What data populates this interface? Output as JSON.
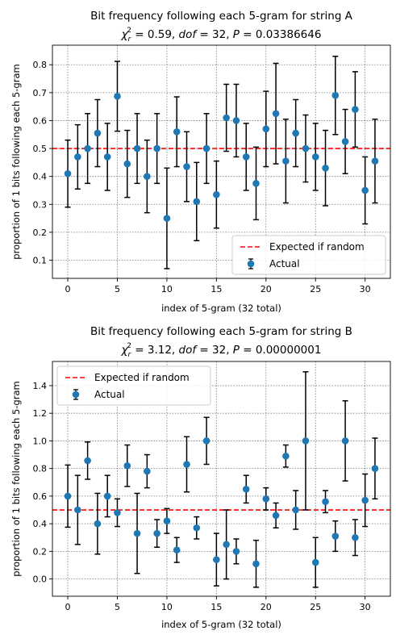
{
  "chart_data": [
    {
      "type": "scatter",
      "title_line1": "Bit frequency following each 5-gram for string A",
      "title_line2": {
        "chi": "χ",
        "sub": "r",
        "sup": "2",
        "rest1": " = 0.59, ",
        "dof": "dof",
        "rest2": " = 32, ",
        "p": "P",
        "rest3": " = 0.03386646"
      },
      "xlabel": "index of 5-gram (32 total)",
      "ylabel": "proportion of 1 bits following each 5-gram",
      "xlim": [
        -1.55,
        32.55
      ],
      "ylim": [
        0.035,
        0.87
      ],
      "xticks": [
        0,
        5,
        10,
        15,
        20,
        25,
        30
      ],
      "yticks": [
        0.1,
        0.2,
        0.3,
        0.4,
        0.5,
        0.6,
        0.7,
        0.8
      ],
      "ytick_labels": [
        "0.1",
        "0.2",
        "0.3",
        "0.4",
        "0.5",
        "0.6",
        "0.7",
        "0.8"
      ],
      "grid": true,
      "legend_position": "lower-right",
      "expected_line": {
        "label": "Expected if random",
        "y": 0.5,
        "color": "#ff0000"
      },
      "series": [
        {
          "name": "Actual",
          "color": "#1f77b4",
          "x": [
            0,
            1,
            2,
            3,
            4,
            5,
            6,
            7,
            8,
            9,
            10,
            11,
            12,
            13,
            14,
            15,
            16,
            17,
            18,
            19,
            20,
            21,
            22,
            23,
            24,
            25,
            26,
            27,
            28,
            29,
            30,
            31
          ],
          "y": [
            0.41,
            0.47,
            0.5,
            0.555,
            0.47,
            0.687,
            0.445,
            0.5,
            0.4,
            0.5,
            0.25,
            0.56,
            0.435,
            0.31,
            0.5,
            0.335,
            0.61,
            0.6,
            0.47,
            0.375,
            0.57,
            0.625,
            0.455,
            0.555,
            0.5,
            0.47,
            0.43,
            0.69,
            0.525,
            0.64,
            0.35,
            0.455
          ],
          "err": [
            0.12,
            0.115,
            0.125,
            0.12,
            0.12,
            0.125,
            0.12,
            0.125,
            0.13,
            0.125,
            0.18,
            0.125,
            0.125,
            0.14,
            0.125,
            0.12,
            0.12,
            0.13,
            0.12,
            0.13,
            0.135,
            0.18,
            0.15,
            0.12,
            0.12,
            0.12,
            0.135,
            0.14,
            0.115,
            0.135,
            0.12,
            0.15
          ]
        }
      ]
    },
    {
      "type": "scatter",
      "title_line1": "Bit frequency following each 5-gram for string B",
      "title_line2": {
        "chi": "χ",
        "sub": "r",
        "sup": "2",
        "rest1": " = 3.12, ",
        "dof": "dof",
        "rest2": " = 32, ",
        "p": "P",
        "rest3": " = 0.00000001"
      },
      "xlabel": "index of 5-gram (32 total)",
      "ylabel": "proportion of 1 bits following each 5-gram",
      "xlim": [
        -1.55,
        32.55
      ],
      "ylim": [
        -0.125,
        1.575
      ],
      "xticks": [
        0,
        5,
        10,
        15,
        20,
        25,
        30
      ],
      "yticks": [
        0.0,
        0.2,
        0.4,
        0.6,
        0.8,
        1.0,
        1.2,
        1.4
      ],
      "ytick_labels": [
        "0.0",
        "0.2",
        "0.4",
        "0.6",
        "0.8",
        "1.0",
        "1.2",
        "1.4"
      ],
      "grid": true,
      "legend_position": "upper-left",
      "expected_line": {
        "label": "Expected if random",
        "y": 0.5,
        "color": "#ff0000"
      },
      "series": [
        {
          "name": "Actual",
          "color": "#1f77b4",
          "x": [
            0,
            1,
            2,
            3,
            4,
            5,
            6,
            7,
            8,
            9,
            10,
            11,
            12,
            13,
            14,
            15,
            16,
            17,
            18,
            19,
            20,
            21,
            22,
            23,
            24,
            25,
            26,
            27,
            28,
            29,
            30,
            31
          ],
          "y": [
            0.6,
            0.5,
            0.857,
            0.4,
            0.6,
            0.48,
            0.82,
            0.33,
            0.78,
            0.33,
            0.42,
            0.21,
            0.83,
            0.37,
            1.0,
            0.14,
            0.25,
            0.2,
            0.65,
            0.11,
            0.58,
            0.46,
            0.89,
            0.5,
            1.0,
            0.12,
            0.56,
            0.31,
            1.0,
            0.3,
            0.57,
            0.8
          ],
          "err": [
            0.225,
            0.25,
            0.135,
            0.22,
            0.15,
            0.1,
            0.15,
            0.29,
            0.12,
            0.1,
            0.09,
            0.09,
            0.2,
            0.08,
            0.17,
            0.19,
            0.25,
            0.09,
            0.1,
            0.17,
            0.08,
            0.09,
            0.08,
            0.14,
            0.5,
            0.18,
            0.08,
            0.11,
            0.29,
            0.13,
            0.19,
            0.22
          ]
        }
      ]
    }
  ]
}
